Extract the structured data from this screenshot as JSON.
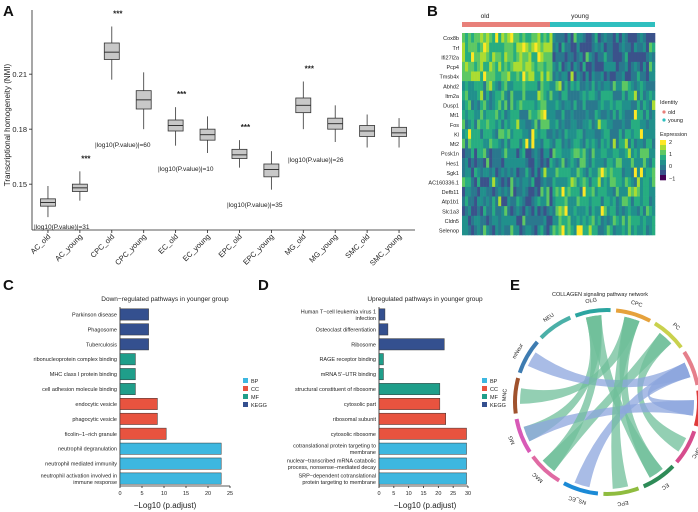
{
  "panels": {
    "A": {
      "letter": "A",
      "chart_data": {
        "type": "box",
        "ylabel": "Transcriptional homogeneity (NMI)",
        "ylim": [
          0.125,
          0.245
        ],
        "yticks": [
          0.15,
          0.18,
          0.21
        ],
        "ytick_labels": [
          "0.15",
          "0.18",
          "0.21"
        ],
        "categories": [
          "AC_old",
          "AC_young",
          "CPC_old",
          "CPC_young",
          "EC_old",
          "EC_young",
          "EPC_old",
          "EPC_young",
          "MG_old",
          "MG_young",
          "SMC_old",
          "SMC_young"
        ],
        "boxes": [
          {
            "q1": 0.138,
            "median": 0.14,
            "q3": 0.142,
            "wlo": 0.132,
            "whi": 0.149
          },
          {
            "q1": 0.146,
            "median": 0.148,
            "q3": 0.15,
            "wlo": 0.141,
            "whi": 0.157
          },
          {
            "q1": 0.218,
            "median": 0.222,
            "q3": 0.227,
            "wlo": 0.207,
            "whi": 0.236
          },
          {
            "q1": 0.191,
            "median": 0.196,
            "q3": 0.201,
            "wlo": 0.18,
            "whi": 0.211
          },
          {
            "q1": 0.179,
            "median": 0.182,
            "q3": 0.185,
            "wlo": 0.171,
            "whi": 0.192
          },
          {
            "q1": 0.174,
            "median": 0.177,
            "q3": 0.18,
            "wlo": 0.167,
            "whi": 0.187
          },
          {
            "q1": 0.164,
            "median": 0.166,
            "q3": 0.169,
            "wlo": 0.159,
            "whi": 0.174
          },
          {
            "q1": 0.154,
            "median": 0.158,
            "q3": 0.161,
            "wlo": 0.147,
            "whi": 0.168
          },
          {
            "q1": 0.189,
            "median": 0.193,
            "q3": 0.197,
            "wlo": 0.18,
            "whi": 0.206
          },
          {
            "q1": 0.18,
            "median": 0.183,
            "q3": 0.186,
            "wlo": 0.173,
            "whi": 0.193
          },
          {
            "q1": 0.176,
            "median": 0.179,
            "q3": 0.182,
            "wlo": 0.17,
            "whi": 0.188
          },
          {
            "q1": 0.176,
            "median": 0.178,
            "q3": 0.181,
            "wlo": 0.17,
            "whi": 0.186
          }
        ],
        "significance": [
          "***",
          "***",
          "***",
          "***",
          "***"
        ],
        "pvalue_labels": [
          "|log10(P.value)|=31",
          "|log10(P.value)|=60",
          "|log10(P.value)|=10",
          "|log10(P.value)|=35",
          "|log10(P.value)|=26"
        ]
      }
    },
    "B": {
      "letter": "B",
      "groups": [
        "old",
        "young"
      ],
      "group_colors": {
        "old": "#e8807a",
        "young": "#2fbfbf"
      },
      "genes": [
        "Cox8b",
        "Trf",
        "Ifi27l2a",
        "Pcp4",
        "Tmsb4x",
        "Abhd2",
        "Itm2a",
        "Dusp1",
        "Mt1",
        "Fos",
        "Kl",
        "Mt2",
        "Pcsk1n",
        "Hes1",
        "Sgk1",
        "AC160336.1",
        "Defb11",
        "Atp1b1",
        "Slc1a3",
        "Cldn5",
        "Selenop"
      ],
      "legend": {
        "identity_title": "Identity",
        "identity_items": [
          "old",
          "young"
        ],
        "expression_title": "Expression",
        "expression_ticks": [
          "2",
          "1",
          "0",
          "−1"
        ]
      }
    },
    "C": {
      "letter": "C",
      "chart_data": {
        "type": "bar",
        "orientation": "horizontal",
        "title": "Down−regulated pathways in younger group",
        "xlabel": "−Log10 (p.adjust)",
        "xlim": [
          0,
          25
        ],
        "xticks": [
          "0",
          "5",
          "10",
          "15",
          "20",
          "25"
        ],
        "categories": [
          "Parkinson disease",
          "Phagosome",
          "Tuberculosis",
          "ribonucleoprotein complex binding",
          "MHC class I protein binding",
          "cell adhesion molecule binding",
          "endocytic vesicle",
          "phagocytic vesicle",
          "ficolin−1−rich granule",
          "neutrophil degranulation",
          "neutrophil mediated immunity",
          "neutrophil activation involved in immune response"
        ],
        "values": [
          6.5,
          6.5,
          6.5,
          3.5,
          3.5,
          3.5,
          8.5,
          8.5,
          10.5,
          23,
          23,
          23
        ],
        "classes": [
          "KEGG",
          "KEGG",
          "KEGG",
          "MF",
          "MF",
          "MF",
          "CC",
          "CC",
          "CC",
          "BP",
          "BP",
          "BP"
        ],
        "legend": [
          "BP",
          "CC",
          "MF",
          "KEGG"
        ]
      }
    },
    "D": {
      "letter": "D",
      "chart_data": {
        "type": "bar",
        "orientation": "horizontal",
        "title": "Upregulated pathways in younger group",
        "xlabel": "−Log10 (p.adjust)",
        "xlim": [
          0,
          30
        ],
        "xticks": [
          "0",
          "5",
          "10",
          "15",
          "20",
          "25",
          "30"
        ],
        "categories": [
          "Human T−cell leukemia virus 1 infection",
          "Osteoclast differentiation",
          "Ribosome",
          "RAGE receptor binding",
          "mRNA 5'−UTR binding",
          "structural constituent of ribosome",
          "cytosolic part",
          "ribosomal subunit",
          "cytosolic ribosome",
          "cotranslational protein targeting to membrane",
          "nuclear−transcribed mRNA catabolic process, nonsense−mediated decay",
          "SRP−dependent cotranslational protein targeting to membrane"
        ],
        "values": [
          2,
          3,
          22,
          1.5,
          1.5,
          20.5,
          20.5,
          22.5,
          29.5,
          29.5,
          29.5,
          29.5
        ],
        "classes": [
          "KEGG",
          "KEGG",
          "KEGG",
          "MF",
          "MF",
          "MF",
          "CC",
          "CC",
          "CC",
          "BP",
          "BP",
          "BP"
        ],
        "legend": [
          "BP",
          "CC",
          "MF",
          "KEGG"
        ]
      }
    },
    "E": {
      "letter": "E",
      "title": "COLLAGEN signaling pathway network",
      "sectors": [
        "OLG",
        "CPC",
        "PC",
        "SMC",
        "AC",
        "OPC",
        "EC",
        "EPC",
        "NS_EC",
        "MAC",
        "MG",
        "MNC",
        "mNeur",
        "NEU"
      ]
    }
  },
  "colors": {
    "BP": "#3db7e0",
    "CC": "#e8533f",
    "MF": "#1f9e8a",
    "KEGG": "#34508f",
    "box": "#c8c8c8"
  }
}
